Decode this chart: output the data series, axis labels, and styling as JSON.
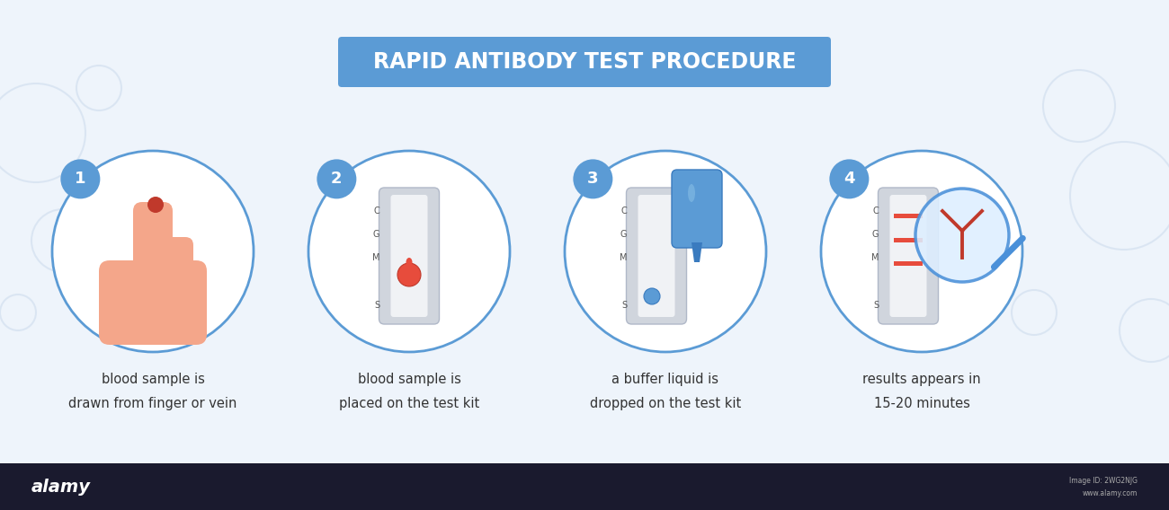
{
  "title": "RAPID ANTIBODY TEST PROCEDURE",
  "title_bg_color": "#5b9bd5",
  "title_text_color": "#ffffff",
  "bg_color": "#eef4fb",
  "bottom_bar_color": "#1a1a2e",
  "steps": [
    {
      "number": "1",
      "caption_line1": "blood sample is",
      "caption_line2": "drawn from finger or vein"
    },
    {
      "number": "2",
      "caption_line1": "blood sample is",
      "caption_line2": "placed on the test kit"
    },
    {
      "number": "3",
      "caption_line1": "a buffer liquid is",
      "caption_line2": "dropped on the test kit"
    },
    {
      "number": "4",
      "caption_line1": "results appears in",
      "caption_line2": "15-20 minutes"
    }
  ],
  "circle_edge_color": "#5b9bd5",
  "circle_face_color": "#ffffff",
  "number_bg_color": "#5b9bd5",
  "number_text_color": "#ffffff",
  "caption_color": "#333333",
  "skin_color": "#f4a68a",
  "blood_dark": "#c0392b",
  "blood_red": "#e74c3c",
  "test_kit_gray": "#d0d5dd",
  "test_kit_white": "#f0f2f5",
  "buffer_blue": "#5b9bd5",
  "magnify_blue": "#4a90d9",
  "antibody_red": "#c0392b",
  "alamy_bar_color": "#1a1a2e",
  "watermark_color": "#c8d8eb"
}
